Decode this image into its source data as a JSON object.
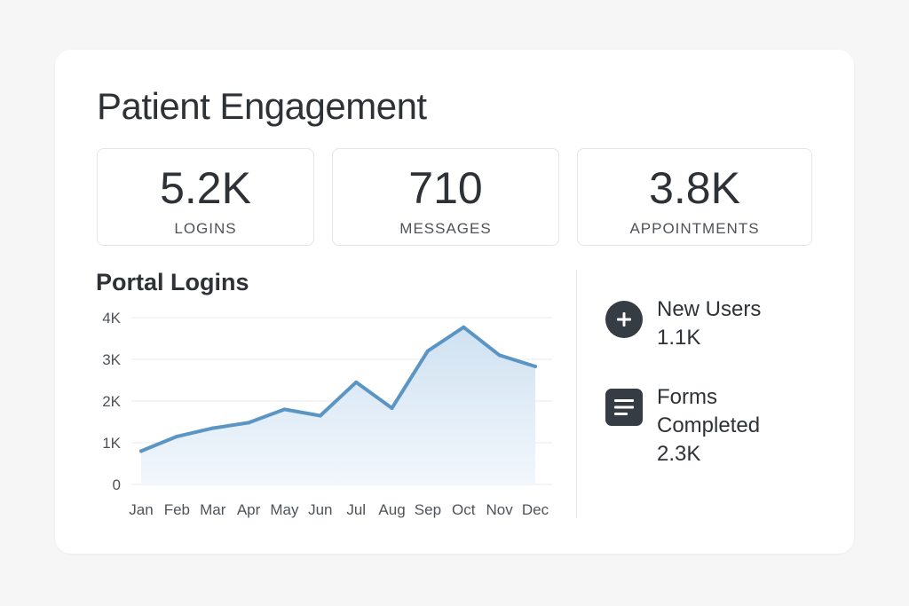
{
  "page": {
    "title": "Patient Engagement"
  },
  "stats": [
    {
      "value": "5.2K",
      "label": "LOGINS"
    },
    {
      "value": "710",
      "label": "MESSAGES"
    },
    {
      "value": "3.8K",
      "label": "APPOINTMENTS"
    }
  ],
  "chart": {
    "title": "Portal Logins"
  },
  "chart_data": {
    "type": "area",
    "title": "Portal Logins",
    "categories": [
      "Jan",
      "Feb",
      "Mar",
      "Apr",
      "May",
      "Jun",
      "Jul",
      "Aug",
      "Sep",
      "Oct",
      "Nov",
      "Dec"
    ],
    "values": [
      800,
      1150,
      1350,
      1480,
      1800,
      1650,
      2450,
      1830,
      3200,
      3770,
      3100,
      2830
    ],
    "yticks": [
      {
        "value": 0,
        "label": "0"
      },
      {
        "value": 1000,
        "label": "1K"
      },
      {
        "value": 2000,
        "label": "2K"
      },
      {
        "value": 3000,
        "label": "3K"
      },
      {
        "value": 4000,
        "label": "4K"
      }
    ],
    "ylim": [
      0,
      4000
    ],
    "grid": true,
    "colors": {
      "line": "#5b95c4",
      "fill_top": "#cfe1f1",
      "fill_bottom": "#f2f7fc",
      "grid": "#e8e9ec"
    }
  },
  "side": [
    {
      "label": "New Users",
      "value": "1.1K",
      "icon": "plus-circle-icon"
    },
    {
      "label": "Forms Completed",
      "value": "2.3K",
      "icon": "document-lines-icon"
    }
  ],
  "colors": {
    "icon_bg": "#353c44",
    "text": "#2e3236"
  }
}
